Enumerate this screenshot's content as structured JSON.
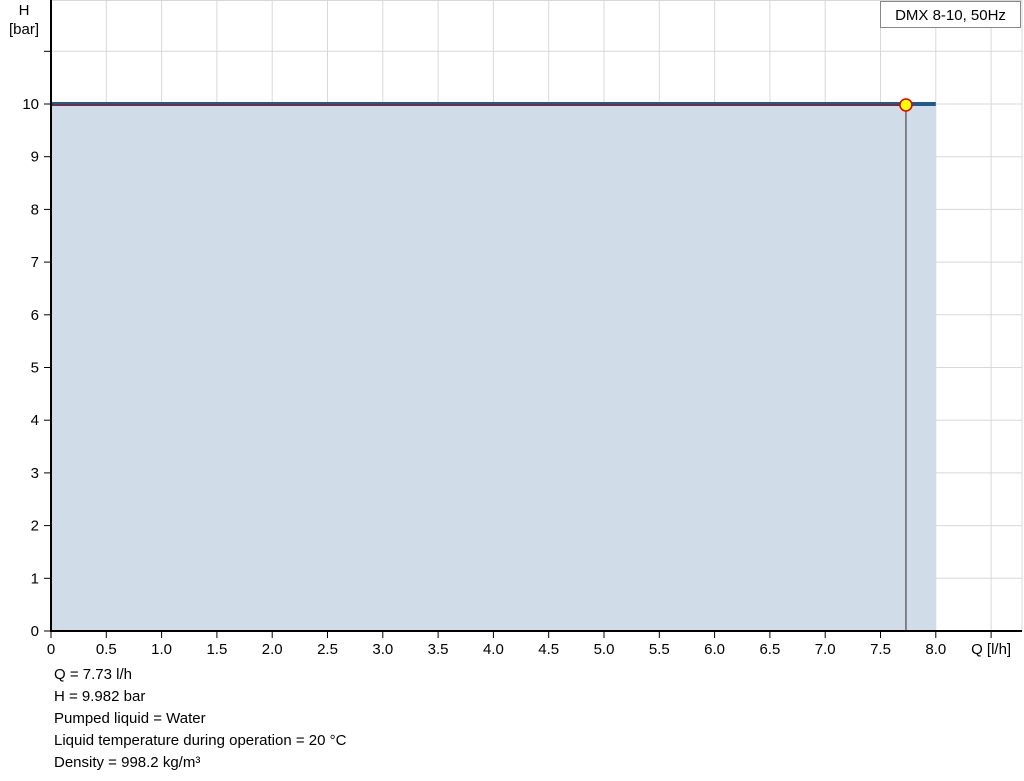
{
  "chart_data": {
    "type": "area",
    "title": "",
    "legend": "DMX 8-10, 50Hz",
    "legend_placement": "top-right",
    "xlabel": "Q [l/h]",
    "ylabel_line1": "H",
    "ylabel_line2": "[bar]",
    "xlim": [
      0,
      8.78
    ],
    "ylim": [
      0,
      12
    ],
    "grid": true,
    "x_ticks": [
      "0",
      "0.5",
      "1.0",
      "1.5",
      "2.0",
      "2.5",
      "3.0",
      "3.5",
      "4.0",
      "4.5",
      "5.0",
      "5.5",
      "6.0",
      "6.5",
      "7.0",
      "7.5",
      "8.0"
    ],
    "y_ticks": [
      "0",
      "1",
      "2",
      "3",
      "4",
      "5",
      "6",
      "7",
      "8",
      "9",
      "10"
    ],
    "series": [
      {
        "x": [
          0,
          8.0
        ],
        "y": [
          10,
          10
        ],
        "color": "#1f5a8c",
        "fill": "#d0dce7"
      }
    ],
    "duty_point": {
      "x": 7.73,
      "y": 9.982,
      "color": "#ffff00",
      "stroke": "#e00000"
    },
    "duty_line_color": "#c00000"
  },
  "info": [
    "Q = 7.73 l/h",
    "H = 9.982 bar",
    "Pumped liquid = Water",
    "Liquid temperature during operation = 20 °C",
    "Density = 998.2 kg/m³"
  ]
}
